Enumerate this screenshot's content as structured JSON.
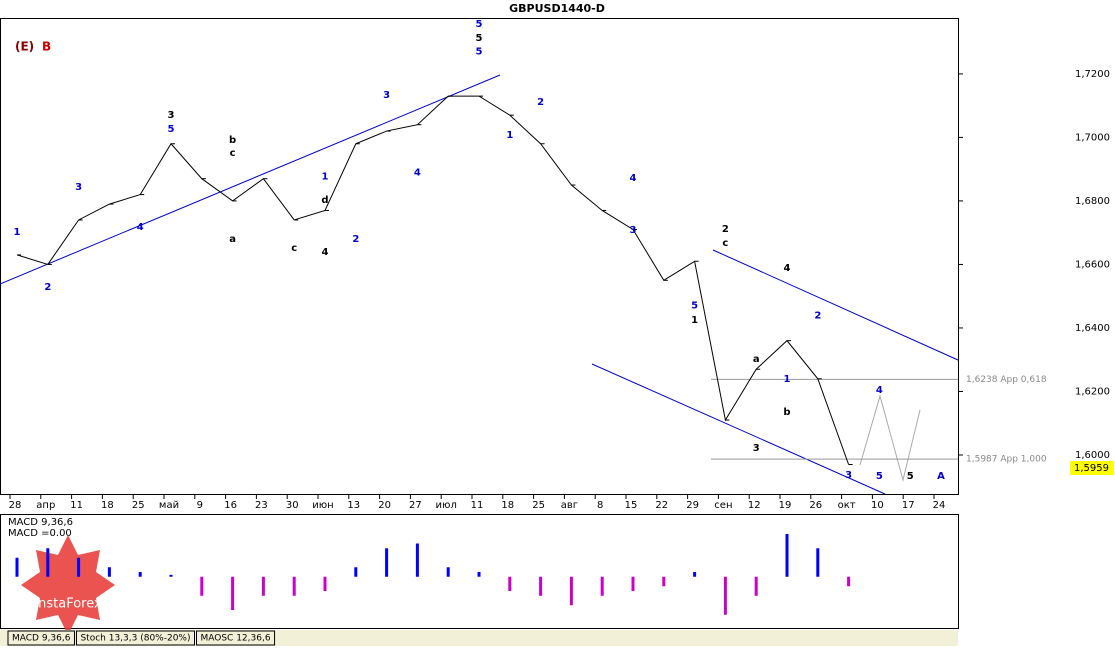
{
  "chart_data": {
    "type": "line",
    "title": "GBPUSD1440-D",
    "header_labels": [
      "(E)",
      "B"
    ],
    "categories": [
      "28",
      "апр",
      "11",
      "18",
      "25",
      "май",
      "9",
      "16",
      "23",
      "30",
      "июн",
      "13",
      "20",
      "27",
      "июл",
      "11",
      "18",
      "25",
      "авг",
      "8",
      "15",
      "22",
      "29",
      "сен",
      "12",
      "19",
      "26",
      "окт",
      "10",
      "17",
      "24"
    ],
    "series": [
      {
        "name": "GBPUSD",
        "color": "#000000",
        "values": [
          1.663,
          1.66,
          1.674,
          1.679,
          1.682,
          1.698,
          1.687,
          1.68,
          1.687,
          1.674,
          1.677,
          1.698,
          1.702,
          1.704,
          1.713,
          1.713,
          1.707,
          1.698,
          1.685,
          1.677,
          1.671,
          1.655,
          1.661,
          1.611,
          1.627,
          1.636,
          1.624,
          1.597,
          null,
          null,
          null
        ]
      }
    ],
    "ylim": [
      1.5874,
      1.7376
    ],
    "yticks": [
      {
        "value": 1.72,
        "label": "1,7200"
      },
      {
        "value": 1.7,
        "label": "1,7000"
      },
      {
        "value": 1.68,
        "label": "1,6800"
      },
      {
        "value": 1.66,
        "label": "1,6600"
      },
      {
        "value": 1.64,
        "label": "1,6400"
      },
      {
        "value": 1.62,
        "label": "1,6200"
      },
      {
        "value": 1.6,
        "label": "1,6000"
      }
    ],
    "levels": [
      {
        "value": 1.6238,
        "label": "1,6238 App 0,618"
      },
      {
        "value": 1.5987,
        "label": "1,5987 App 1,000"
      }
    ],
    "last_price": {
      "value": 1.5959,
      "label": "1,5959"
    },
    "wave_labels": [
      {
        "text": "1",
        "at": 0,
        "y": 1.6702,
        "color": "#0000cc"
      },
      {
        "text": "2",
        "at": 1,
        "y": 1.6529,
        "color": "#0000cc"
      },
      {
        "text": "3",
        "at": 2,
        "y": 1.6844,
        "color": "#0000cc"
      },
      {
        "text": "4",
        "at": 4,
        "y": 1.6718,
        "color": "#0000cc"
      },
      {
        "text": "3",
        "at": 5,
        "y": 1.7071,
        "color": "#000000"
      },
      {
        "text": "5",
        "at": 5,
        "y": 1.7027,
        "color": "#0000cc"
      },
      {
        "text": "b",
        "at": 7,
        "y": 1.6992,
        "color": "#000000"
      },
      {
        "text": "c",
        "at": 7,
        "y": 1.6951,
        "color": "#000000"
      },
      {
        "text": "a",
        "at": 7,
        "y": 1.668,
        "color": "#000000"
      },
      {
        "text": "c",
        "at": 9,
        "y": 1.6652,
        "color": "#000000"
      },
      {
        "text": "d",
        "at": 10,
        "y": 1.6803,
        "color": "#000000"
      },
      {
        "text": "4",
        "at": 10,
        "y": 1.6639,
        "color": "#000000"
      },
      {
        "text": "1",
        "at": 10,
        "y": 1.6877,
        "color": "#0000cc"
      },
      {
        "text": "2",
        "at": 11,
        "y": 1.668,
        "color": "#0000cc"
      },
      {
        "text": "3",
        "at": 12,
        "y": 1.7134,
        "color": "#0000cc"
      },
      {
        "text": "4",
        "at": 13,
        "y": 1.689,
        "color": "#0000cc"
      },
      {
        "text": "5",
        "at": 15,
        "y": 1.7357,
        "color": "#0000cc"
      },
      {
        "text": "5",
        "at": 15,
        "y": 1.7313,
        "color": "#000000"
      },
      {
        "text": "5",
        "at": 15,
        "y": 1.727,
        "color": "#0000cc"
      },
      {
        "text": "1",
        "at": 16,
        "y": 1.7008,
        "color": "#0000cc"
      },
      {
        "text": "2",
        "at": 17,
        "y": 1.7112,
        "color": "#0000cc"
      },
      {
        "text": "3",
        "at": 20,
        "y": 1.6709,
        "color": "#0000cc"
      },
      {
        "text": "4",
        "at": 20,
        "y": 1.6872,
        "color": "#0000cc"
      },
      {
        "text": "5",
        "at": 22,
        "y": 1.647,
        "color": "#0000cc"
      },
      {
        "text": "1",
        "at": 22,
        "y": 1.6425,
        "color": "#000000"
      },
      {
        "text": "2",
        "at": 23,
        "y": 1.6712,
        "color": "#000000"
      },
      {
        "text": "c",
        "at": 23,
        "y": 1.6668,
        "color": "#000000"
      },
      {
        "text": "3",
        "at": 24,
        "y": 1.6022,
        "color": "#000000"
      },
      {
        "text": "a",
        "at": 24,
        "y": 1.6302,
        "color": "#000000"
      },
      {
        "text": "b",
        "at": 25,
        "y": 1.6135,
        "color": "#000000"
      },
      {
        "text": "4",
        "at": 25,
        "y": 1.6589,
        "color": "#000000"
      },
      {
        "text": "2",
        "at": 26,
        "y": 1.644,
        "color": "#0000cc"
      },
      {
        "text": "1",
        "at": 25,
        "y": 1.624,
        "color": "#0000cc"
      },
      {
        "text": "3",
        "at": 27,
        "y": 1.5937,
        "color": "#0000cc"
      },
      {
        "text": "4",
        "at": 28,
        "y": 1.6204,
        "color": "#0000cc"
      },
      {
        "text": "5",
        "at": 28,
        "y": 1.5934,
        "color": "#0000cc"
      },
      {
        "text": "5",
        "at": 29,
        "y": 1.5934,
        "color": "#000000"
      },
      {
        "text": "A",
        "at": 30,
        "y": 1.5934,
        "color": "#0000cc"
      }
    ],
    "macd": {
      "label": "MACD 9,36,6",
      "value_label": "MACD =0.00",
      "positive_color": "#0000ff",
      "negative_color": "#cc00cc",
      "ylim": [
        -0.0055,
        0.0065
      ],
      "values": [
        0.002,
        0.003,
        0.002,
        0.001,
        0.0005,
        0.0002,
        -0.002,
        -0.0035,
        -0.002,
        -0.002,
        -0.0015,
        0.001,
        0.003,
        0.0035,
        0.001,
        0.0005,
        -0.0015,
        -0.002,
        -0.003,
        -0.002,
        -0.0015,
        -0.001,
        0.0005,
        -0.004,
        -0.002,
        0.0045,
        0.003,
        -0.001,
        null,
        null,
        null
      ]
    },
    "tabs": [
      "MACD 9,36,6",
      "Stoch 13,3,3 (80%-20%)",
      "MAOSC 12,36,6"
    ],
    "logo": "InstaForex"
  }
}
